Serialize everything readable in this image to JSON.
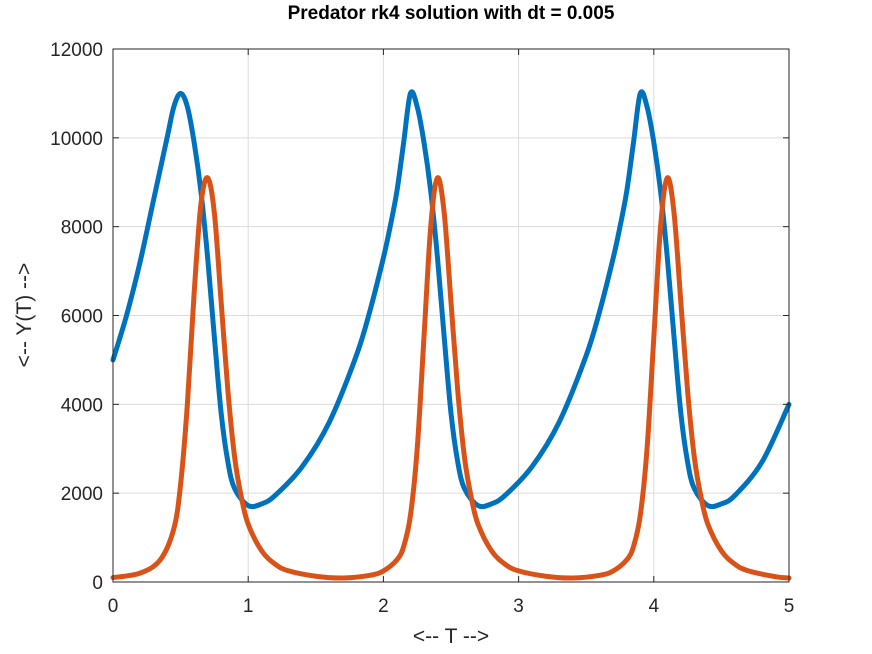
{
  "chart_data": {
    "type": "line",
    "title": "Predator rk4 solution with dt = 0.005",
    "xlabel": "<-- T -->",
    "ylabel": "<-- Y(T) -->",
    "xlim": [
      0,
      5
    ],
    "ylim": [
      0,
      12000
    ],
    "xticks": [
      "0",
      "1",
      "2",
      "3",
      "4",
      "5"
    ],
    "yticks": [
      "0",
      "2000",
      "4000",
      "6000",
      "8000",
      "10000",
      "12000"
    ],
    "grid": true,
    "series": [
      {
        "color": "#0072bd",
        "x": [
          0.0,
          0.1,
          0.2,
          0.3,
          0.4,
          0.45,
          0.5,
          0.55,
          0.6,
          0.65,
          0.7,
          0.75,
          0.8,
          0.85,
          0.9,
          1.0,
          1.1,
          1.2,
          1.4,
          1.6,
          1.8,
          1.9,
          2.0,
          2.05,
          2.1,
          2.15,
          2.2,
          2.25,
          2.3,
          2.35,
          2.4,
          2.45,
          2.5,
          2.55,
          2.6,
          2.7,
          2.8,
          2.9,
          3.1,
          3.3,
          3.5,
          3.6,
          3.7,
          3.75,
          3.8,
          3.85,
          3.9,
          3.95,
          4.0,
          4.05,
          4.1,
          4.15,
          4.2,
          4.25,
          4.3,
          4.4,
          4.5,
          4.6,
          4.8,
          5.0
        ],
        "y": [
          5000,
          6000,
          7200,
          8600,
          10000,
          10700,
          11000,
          10700,
          9900,
          8800,
          7300,
          5500,
          3800,
          2700,
          2100,
          1720,
          1760,
          1950,
          2600,
          3600,
          5100,
          6100,
          7300,
          8000,
          8800,
          9900,
          11000,
          10700,
          9900,
          8800,
          7300,
          5500,
          3800,
          2700,
          2100,
          1720,
          1760,
          1950,
          2600,
          3600,
          5100,
          6100,
          7300,
          8000,
          8800,
          9900,
          11000,
          10700,
          9900,
          8800,
          7300,
          5500,
          3800,
          2700,
          2100,
          1720,
          1760,
          1950,
          2700,
          4000
        ]
      },
      {
        "color": "#d95319",
        "x": [
          0.0,
          0.2,
          0.35,
          0.45,
          0.5,
          0.55,
          0.6,
          0.65,
          0.7,
          0.75,
          0.8,
          0.85,
          0.9,
          0.95,
          1.0,
          1.1,
          1.2,
          1.3,
          1.5,
          1.7,
          1.9,
          2.0,
          2.1,
          2.15,
          2.2,
          2.25,
          2.3,
          2.35,
          2.4,
          2.45,
          2.5,
          2.55,
          2.6,
          2.65,
          2.7,
          2.8,
          2.9,
          3.0,
          3.2,
          3.4,
          3.6,
          3.7,
          3.8,
          3.85,
          3.9,
          3.95,
          4.0,
          4.05,
          4.1,
          4.15,
          4.2,
          4.25,
          4.3,
          4.35,
          4.4,
          4.5,
          4.6,
          4.7,
          4.9,
          5.0
        ],
        "y": [
          100,
          200,
          500,
          1200,
          2200,
          4000,
          6500,
          8500,
          9100,
          8300,
          6300,
          4300,
          2800,
          1900,
          1300,
          700,
          400,
          250,
          130,
          90,
          150,
          250,
          500,
          800,
          1500,
          3000,
          5500,
          8000,
          9100,
          8300,
          6300,
          4300,
          2800,
          1900,
          1300,
          700,
          400,
          250,
          130,
          90,
          150,
          250,
          500,
          800,
          1500,
          3000,
          5500,
          8000,
          9100,
          8300,
          6300,
          4300,
          2800,
          1900,
          1300,
          700,
          400,
          250,
          120,
          90
        ]
      }
    ]
  }
}
